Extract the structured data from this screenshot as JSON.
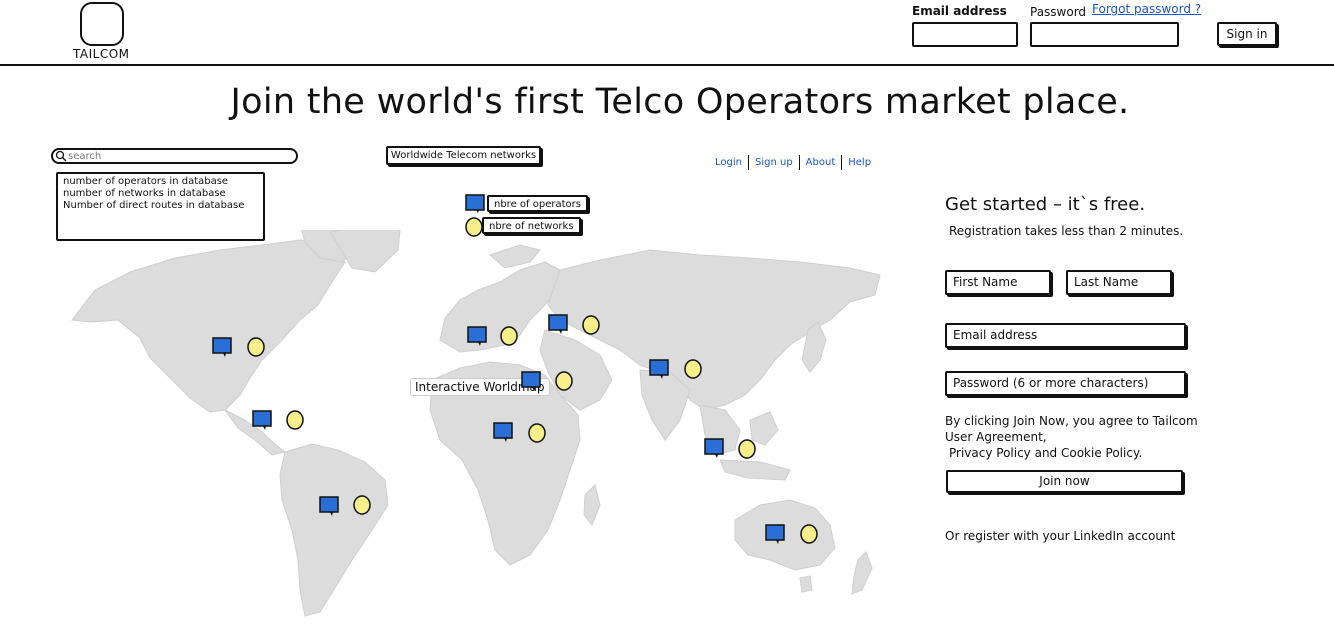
{
  "header": {
    "logo_text": "TAILCOM",
    "email_label": "Email address",
    "password_label": "Password",
    "forgot_link": "Forgot password ?",
    "signin_label": "Sign in"
  },
  "headline": "Join the world's first Telco Operators market place.",
  "search": {
    "placeholder": "search"
  },
  "stats": [
    "number of operators in database",
    "number of networks in database",
    "Number of direct routes in database"
  ],
  "networks_button": "Worldwide Telecom networks",
  "nav": {
    "items": [
      "Login",
      "Sign up",
      "About",
      "Help"
    ]
  },
  "legend": {
    "operators": "nbre of operators",
    "networks": "nbre of networks"
  },
  "map": {
    "caption": "Interactive Worldmap",
    "operator_color": "#2a6fd6",
    "network_color": "#f6ef8a",
    "land_color": "#dcdcdc"
  },
  "signup": {
    "title": "Get started – it`s free.",
    "subtitle": "Registration takes less than 2 minutes.",
    "first_name": "First Name",
    "last_name": "Last Name",
    "email": "Email address",
    "password": "Password (6 or more characters)",
    "agree_line1": "By clicking Join Now, you agree to Tailcom User Agreement,",
    "agree_line2": "Privacy Policy and Cookie Policy.",
    "join_label": "Join now",
    "linkedin": "Or register with your LinkedIn account"
  }
}
